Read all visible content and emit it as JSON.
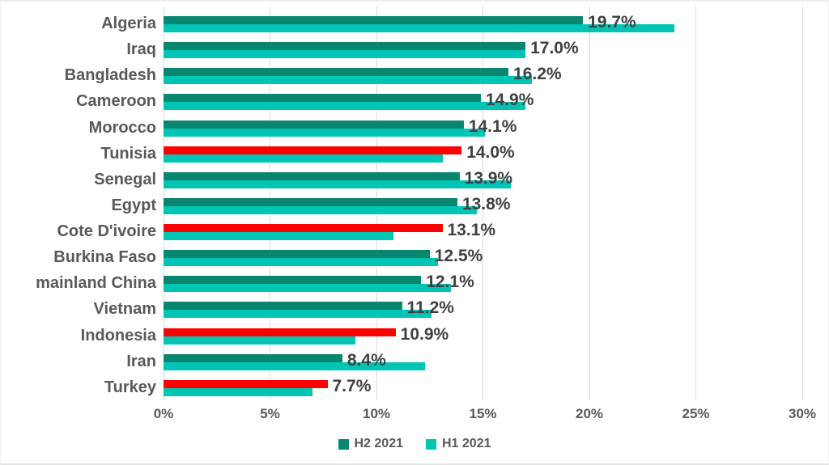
{
  "chart_data": {
    "type": "bar",
    "orientation": "horizontal",
    "title": "",
    "categories": [
      "Algeria",
      "Iraq",
      "Bangladesh",
      "Cameroon",
      "Morocco",
      "Tunisia",
      "Senegal",
      "Egypt",
      "Cote D'ivoire",
      "Burkina Faso",
      "mainland China",
      "Vietnam",
      "Indonesia",
      "Iran",
      "Turkey"
    ],
    "series": [
      {
        "name": "H2 2021",
        "values": [
          19.7,
          17.0,
          16.2,
          14.9,
          14.1,
          14.0,
          13.9,
          13.8,
          13.1,
          12.5,
          12.1,
          11.2,
          10.9,
          8.4,
          7.7
        ],
        "data_labels": [
          "19.7%",
          "17.0%",
          "16.2%",
          "14.9%",
          "14.1%",
          "14.0%",
          "13.9%",
          "13.8%",
          "13.1%",
          "12.5%",
          "12.1%",
          "11.2%",
          "10.9%",
          "8.4%",
          "7.7%"
        ],
        "bar_colors": [
          "#088670",
          "#088670",
          "#088670",
          "#088670",
          "#088670",
          "#ff0000",
          "#088670",
          "#088670",
          "#ff0000",
          "#088670",
          "#088670",
          "#088670",
          "#ff0000",
          "#088670",
          "#ff0000"
        ]
      },
      {
        "name": "H1 2021",
        "values": [
          24.0,
          17.0,
          17.3,
          17.0,
          15.1,
          13.1,
          16.3,
          14.7,
          10.8,
          12.9,
          13.5,
          12.6,
          9.0,
          12.3,
          7.0
        ],
        "color": "#00c5b5"
      }
    ],
    "x_axis": {
      "min": 0,
      "max": 30,
      "step": 5,
      "tick_labels": [
        "0%",
        "5%",
        "10%",
        "15%",
        "20%",
        "25%",
        "30%"
      ]
    },
    "legend": {
      "position": "bottom",
      "items": [
        {
          "label": "H2 2021",
          "color": "#088670"
        },
        {
          "label": "H1 2021",
          "color": "#00c5b5"
        }
      ]
    },
    "grid": "vertical-only",
    "colors": {
      "h2_default": "#088670",
      "h2_highlight": "#ff0000",
      "h1": "#00c5b5",
      "gridline": "#dcdcdc",
      "category_text": "#595959",
      "data_label_text": "#3f3f3f",
      "axis_text": "#595959"
    }
  }
}
